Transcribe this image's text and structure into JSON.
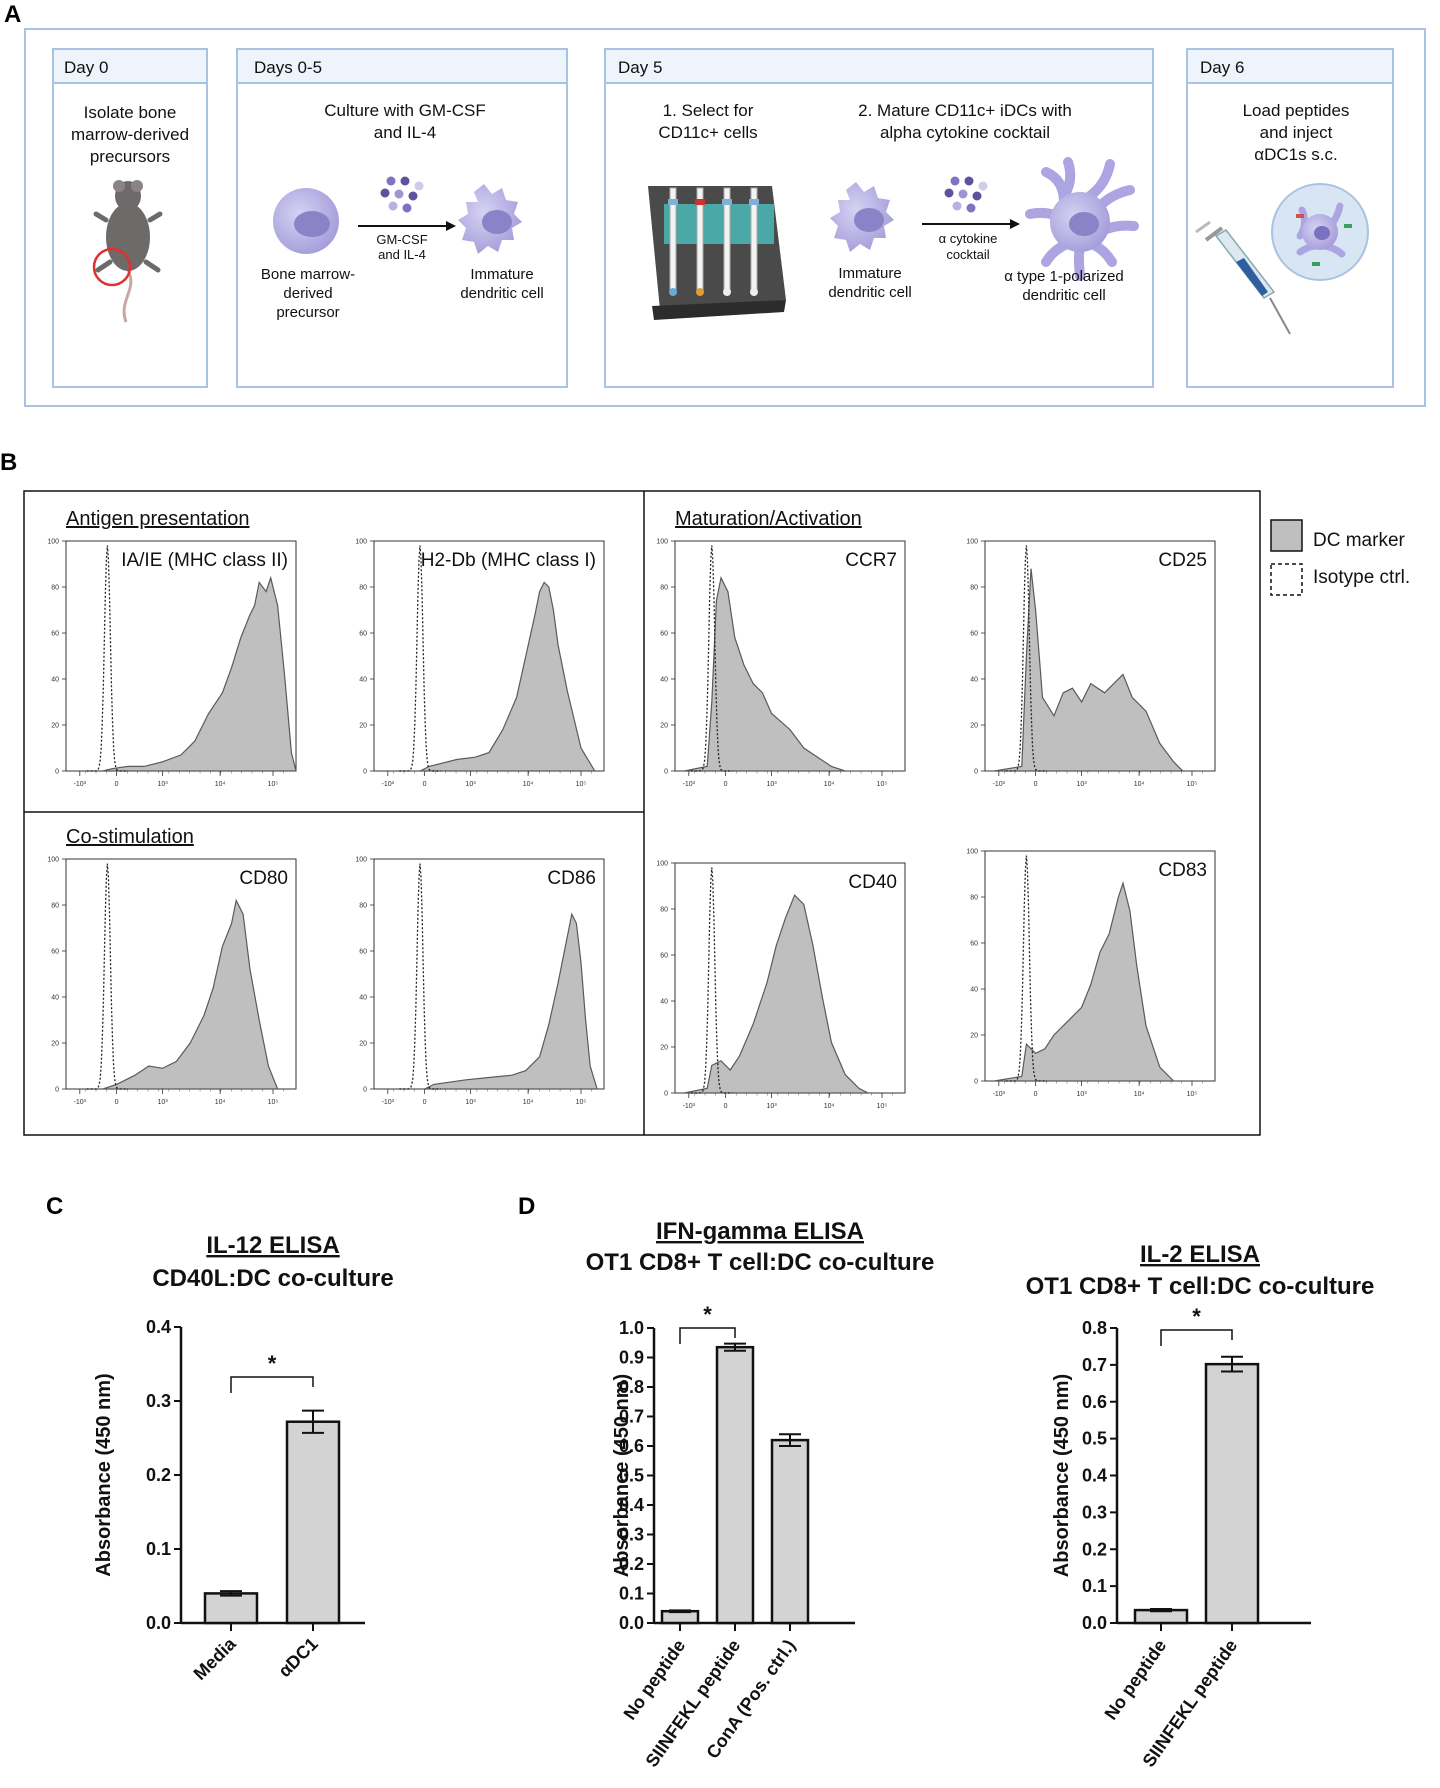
{
  "panel_a": {
    "letter": "A",
    "steps": [
      {
        "head": "Day 0",
        "lines": [
          "Isolate bone",
          "marrow-derived",
          "precursors"
        ]
      },
      {
        "head": "Days 0-5",
        "lines": [
          "Culture with GM-CSF",
          "and IL-4"
        ],
        "arrow_label": [
          "GM-CSF",
          "and IL-4"
        ],
        "cell1": [
          "Bone marrow-",
          "derived",
          "precursor"
        ],
        "cell2": [
          "Immature",
          "dendritic cell"
        ]
      },
      {
        "head": "Day 5",
        "sub1": [
          "1. Select for",
          "CD11c+ cells"
        ],
        "sub2": [
          "2. Mature CD11c+ iDCs with",
          "alpha cytokine cocktail"
        ],
        "arrow_label": [
          "α cytokine",
          "cocktail"
        ],
        "cell1": [
          "Immature",
          "dendritic cell"
        ],
        "cell2": [
          "α type 1-polarized",
          "dendritic cell"
        ]
      },
      {
        "head": "Day 6",
        "lines": [
          "Load peptides",
          "and inject",
          "αDC1s s.c."
        ]
      }
    ]
  },
  "panel_b": {
    "letter": "B",
    "sections": [
      "Antigen presentation",
      "Co-stimulation",
      "Maturation/Activation"
    ],
    "markers": [
      "IA/IE (MHC class II)",
      "H2-Db (MHC class I)",
      "CCR7",
      "CD25",
      "CD80",
      "CD86",
      "CD40",
      "CD83"
    ],
    "y_ticks": [
      "100",
      "80",
      "60",
      "40",
      "20",
      "0"
    ],
    "x_ticks": [
      "-10³",
      "0",
      "10³",
      "10⁴",
      "10⁵"
    ],
    "legend": {
      "filled": "DC marker",
      "dashed": "Isotype ctrl."
    }
  },
  "panel_c": {
    "letter": "C"
  },
  "panel_d": {
    "letter": "D"
  },
  "chart_data": [
    {
      "type": "bar",
      "title": "IL-12 ELISA",
      "subtitle": "CD40L:DC co-culture",
      "categories": [
        "Media",
        "αDC1"
      ],
      "values": [
        0.04,
        0.272
      ],
      "errors": [
        0.003,
        0.015
      ],
      "ylabel": "Absorbance (450 nm)",
      "ylim": [
        0,
        0.4
      ],
      "yticks": [
        "0.0",
        "0.1",
        "0.2",
        "0.3",
        "0.4"
      ],
      "annotation": "*"
    },
    {
      "type": "bar",
      "title": "IFN-gamma ELISA",
      "subtitle": "OT1 CD8+ T cell:DC co-culture",
      "categories": [
        "No peptide",
        "SIINFEKL peptide",
        "ConA (Pos. ctrl.)"
      ],
      "values": [
        0.04,
        0.935,
        0.62
      ],
      "errors": [
        0.003,
        0.012,
        0.02
      ],
      "ylabel": "Absorbance (450 nm)",
      "ylim": [
        0,
        1.0
      ],
      "yticks": [
        "0.0",
        "0.1",
        "0.2",
        "0.3",
        "0.4",
        "0.5",
        "0.6",
        "0.7",
        "0.8",
        "0.9",
        "1.0"
      ],
      "annotation": "*"
    },
    {
      "type": "bar",
      "title": "IL-2 ELISA",
      "subtitle": "OT1 CD8+ T cell:DC co-culture",
      "categories": [
        "No peptide",
        "SIINFEKL peptide"
      ],
      "values": [
        0.035,
        0.702
      ],
      "errors": [
        0.003,
        0.02
      ],
      "ylabel": "Absorbance (450 nm)",
      "ylim": [
        0,
        0.8
      ],
      "yticks": [
        "0.0",
        "0.1",
        "0.2",
        "0.3",
        "0.4",
        "0.5",
        "0.6",
        "0.7",
        "0.8"
      ],
      "annotation": "*"
    }
  ]
}
